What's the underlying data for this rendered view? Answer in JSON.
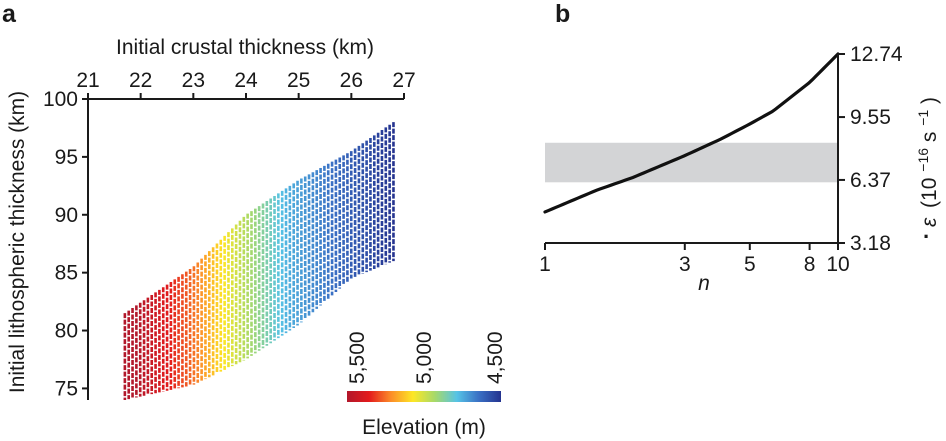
{
  "panels": {
    "a": {
      "letter": "a"
    },
    "b": {
      "letter": "b"
    }
  },
  "colors": {
    "axis": "#1a1a1a",
    "curve": "#111111",
    "shaded_band": "#d3d4d6",
    "colormap": [
      "#b2182b",
      "#e31a1c",
      "#fc8d29",
      "#fde725",
      "#a6d96a",
      "#56c3e6",
      "#3a6fc4",
      "#24338f"
    ]
  },
  "chart_data": [
    {
      "panel": "a",
      "type": "heatmap",
      "title": "",
      "xlabel": "Initial crustal thickness (km)",
      "ylabel": "Initial lithospheric thickness (km)",
      "x_axis_position": "top",
      "xlim": [
        21,
        27
      ],
      "ylim": [
        74,
        100
      ],
      "xticks": [
        "21",
        "22",
        "23",
        "24",
        "25",
        "26",
        "27"
      ],
      "yticks": [
        "75",
        "80",
        "85",
        "90",
        "95",
        "100"
      ],
      "grid": false,
      "colorbar": {
        "label": "Elevation (m)",
        "ticks": [
          "5,500",
          "5,000",
          "4,500"
        ],
        "range": [
          5500,
          4500
        ],
        "orientation": "horizontal",
        "placement": "bottom-right"
      },
      "region": {
        "description_points": [
          {
            "crust": 21.7,
            "lith_min": 74.0,
            "lith_max": 81.5
          },
          {
            "crust": 23.0,
            "lith_min": 75.3,
            "lith_max": 85.5
          },
          {
            "crust": 24.0,
            "lith_min": 77.5,
            "lith_max": 90.0
          },
          {
            "crust": 25.0,
            "lith_min": 80.5,
            "lith_max": 93.0
          },
          {
            "crust": 26.0,
            "lith_min": 84.5,
            "lith_max": 95.5
          },
          {
            "crust": 26.8,
            "lith_min": 86.0,
            "lith_max": 98.0
          }
        ],
        "elevation_at_crust": [
          {
            "crust": 21.7,
            "elevation": 5550
          },
          {
            "crust": 23.0,
            "elevation": 5250
          },
          {
            "crust": 23.8,
            "elevation": 5000
          },
          {
            "crust": 24.8,
            "elevation": 4750
          },
          {
            "crust": 26.8,
            "elevation": 4500
          }
        ]
      }
    },
    {
      "panel": "b",
      "type": "line",
      "title": "",
      "xlabel": "n",
      "ylabel": "ε̇ (10−16 s−1)",
      "ylabel_parts": {
        "symbol": "ε",
        "dot": "·",
        "open": "(10",
        "exp1": "−16",
        "mid": " s",
        "exp2": "−1",
        "close": ")"
      },
      "y_axis_position": "right",
      "x_scale": "log",
      "xlim": [
        1,
        10
      ],
      "ylim": [
        3.18,
        12.74
      ],
      "xticks": [
        "1",
        "3",
        "5",
        "8",
        "10"
      ],
      "yticks": [
        "3.18",
        "6.37",
        "9.55",
        "12.74"
      ],
      "grid": false,
      "shaded_band": {
        "y_min": 6.25,
        "y_max": 8.25
      },
      "series": [
        {
          "x": [
            1,
            1.5,
            2,
            3,
            4,
            5,
            6,
            8,
            10
          ],
          "y": [
            4.75,
            5.85,
            6.5,
            7.6,
            8.45,
            9.2,
            9.85,
            11.3,
            12.74
          ]
        }
      ]
    }
  ]
}
